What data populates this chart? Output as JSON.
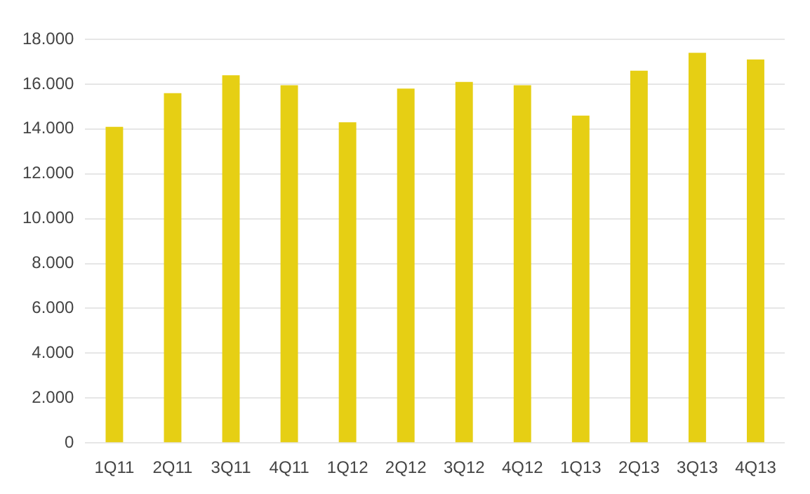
{
  "chart_data": {
    "type": "bar",
    "categories": [
      "1Q11",
      "2Q11",
      "3Q11",
      "4Q11",
      "1Q12",
      "2Q12",
      "3Q12",
      "4Q12",
      "1Q13",
      "2Q13",
      "3Q13",
      "4Q13"
    ],
    "values": [
      14100,
      15600,
      16400,
      15950,
      14300,
      15800,
      16100,
      15950,
      14600,
      16600,
      17400,
      17100
    ],
    "color": "#e6cf14",
    "ylim": [
      0,
      18000
    ],
    "yticks": [
      0,
      {
        "value": 2000,
        "label": "2.000"
      },
      {
        "value": 4000,
        "label": "4.000"
      },
      {
        "value": 6000,
        "label": "6.000"
      },
      {
        "value": 8000,
        "label": "8.000"
      },
      {
        "value": 10000,
        "label": "10.000"
      },
      {
        "value": 12000,
        "label": "12.000"
      },
      {
        "value": 14000,
        "label": "14.000"
      },
      {
        "value": 16000,
        "label": "16.000"
      },
      {
        "value": 18000,
        "label": "18.000"
      }
    ],
    "grid": "y"
  }
}
